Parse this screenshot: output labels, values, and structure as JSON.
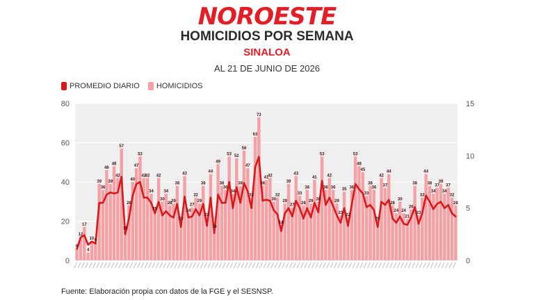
{
  "header": {
    "brand": "NOROESTE",
    "title": "HOMICIDIOS POR SEMANA",
    "region": "SINALOA",
    "date": "AL 21 DE JUNIO DE 2026"
  },
  "legend": {
    "line_label": "PROMEDIO DIARIO",
    "bar_label": "HOMICIDIOS"
  },
  "footer": {
    "source": "Fuente: Elaboración propia con datos de la FGE y el SESNSP."
  },
  "colors": {
    "brand": "#e41e26",
    "line": "#d7191c",
    "bar": "#f4a0a5",
    "plot_background": "#efefef"
  },
  "chart_data": {
    "type": "bar",
    "title": "HOMICIDIOS POR SEMANA",
    "xlabel": "",
    "ylabel": "",
    "ylim": [
      0,
      80
    ],
    "y2lim": [
      0,
      15
    ],
    "yticks": [
      0,
      20,
      40,
      60,
      80
    ],
    "y2ticks": [
      0,
      5,
      10,
      15
    ],
    "grid": true,
    "legend_position": "top-left",
    "series": [
      {
        "name": "HOMICIDIOS",
        "kind": "bar",
        "axis": "left",
        "values": [
          6,
          12,
          17,
          4,
          10,
          9,
          39,
          36,
          46,
          39,
          48,
          42,
          57,
          15,
          28,
          40,
          47,
          53,
          42,
          42,
          34,
          25,
          42,
          30,
          34,
          28,
          29,
          38,
          20,
          43,
          24,
          27,
          32,
          29,
          38,
          22,
          44,
          16,
          49,
          38,
          36,
          53,
          34,
          52,
          38,
          56,
          47,
          32,
          63,
          73,
          38,
          41,
          42,
          30,
          32,
          18,
          29,
          39,
          27,
          43,
          33,
          28,
          36,
          29,
          41,
          30,
          53,
          36,
          42,
          36,
          29,
          23,
          35,
          22,
          36,
          53,
          48,
          45,
          33,
          38,
          36,
          20,
          42,
          37,
          44,
          28,
          24,
          30,
          24,
          21,
          26,
          38,
          23,
          32,
          44,
          38,
          34,
          37,
          39,
          34,
          37,
          32,
          28
        ]
      },
      {
        "name": "PROMEDIO DIARIO",
        "kind": "line",
        "axis": "right",
        "values": [
          1.1,
          2.2,
          2.4,
          1.5,
          1.8,
          1.6,
          5.5,
          5.5,
          6.3,
          6.5,
          6.4,
          6.5,
          8.0,
          2.5,
          4.0,
          6.2,
          7.3,
          7.5,
          6.0,
          6.0,
          5.5,
          4.5,
          5.6,
          4.3,
          4.7,
          4.3,
          4.1,
          5.4,
          3.2,
          6.1,
          4.1,
          4.2,
          4.9,
          4.3,
          5.4,
          3.3,
          6.0,
          2.6,
          6.3,
          5.5,
          5.5,
          7.5,
          5.0,
          7.0,
          5.5,
          7.4,
          6.6,
          5.0,
          8.9,
          9.9,
          5.7,
          5.8,
          5.7,
          4.8,
          4.4,
          2.8,
          4.5,
          5.0,
          4.2,
          5.7,
          5.0,
          4.0,
          5.0,
          4.1,
          5.5,
          4.6,
          7.6,
          5.3,
          6.0,
          5.2,
          4.3,
          3.6,
          5.0,
          3.3,
          5.3,
          7.3,
          6.8,
          6.4,
          5.1,
          5.3,
          4.8,
          3.2,
          5.6,
          5.3,
          5.8,
          4.0,
          3.6,
          4.2,
          3.5,
          3.4,
          4.1,
          5.1,
          3.5,
          4.5,
          6.2,
          5.6,
          4.9,
          5.4,
          5.6,
          5.0,
          5.3,
          4.5,
          4.2
        ]
      }
    ]
  }
}
